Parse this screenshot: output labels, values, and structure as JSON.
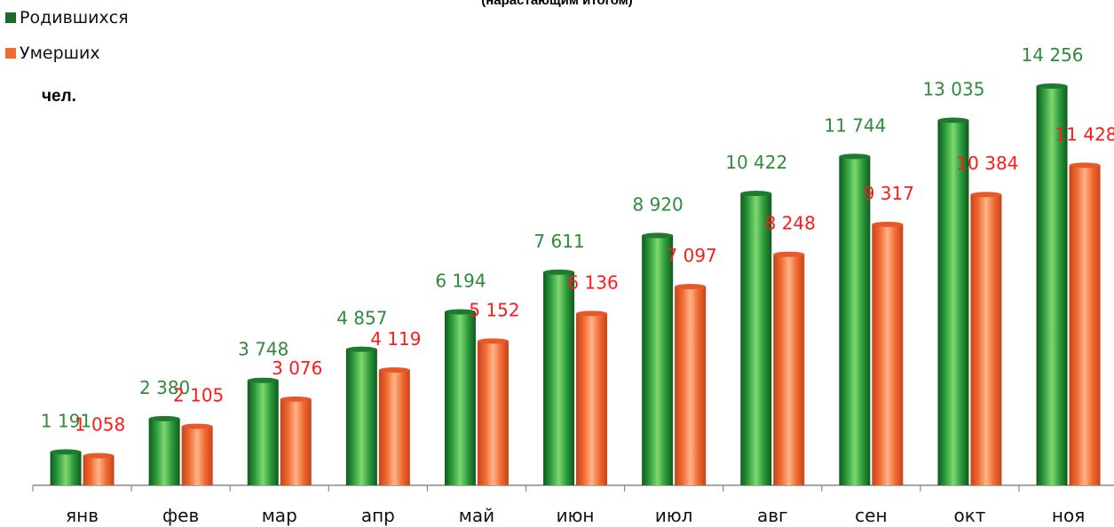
{
  "chart_data": {
    "type": "bar",
    "title": "(нарастающим итогом)",
    "unit_label": "чел.",
    "categories": [
      "янв",
      "фев",
      "мар",
      "апр",
      "май",
      "июн",
      "июл",
      "авг",
      "сен",
      "окт",
      "ноя"
    ],
    "series": [
      {
        "name": "Родившихся",
        "color": "#1f8a32",
        "values": [
          1191,
          2380,
          3748,
          4857,
          6194,
          7611,
          8920,
          10422,
          11744,
          13035,
          14256
        ],
        "labels": [
          "1 191",
          "2 380",
          "3 748",
          "4 857",
          "6 194",
          "7 611",
          "8 920",
          "10 422",
          "11 744",
          "13 035",
          "14 256"
        ],
        "label_color": "#2e8b3a"
      },
      {
        "name": "Умерших",
        "color": "#f06a30",
        "values": [
          1058,
          2105,
          3076,
          4119,
          5152,
          6136,
          7097,
          8248,
          9317,
          10384,
          11428
        ],
        "labels": [
          "1 058",
          "2 105",
          "3 076",
          "4 119",
          "5 152",
          "6 136",
          "7 097",
          "8 248",
          "9 317",
          "10 384",
          "11 428"
        ],
        "label_color": "#ff1a1a"
      }
    ],
    "ylim": [
      0,
      15500
    ],
    "grid": false,
    "legend_position": "top-left"
  }
}
